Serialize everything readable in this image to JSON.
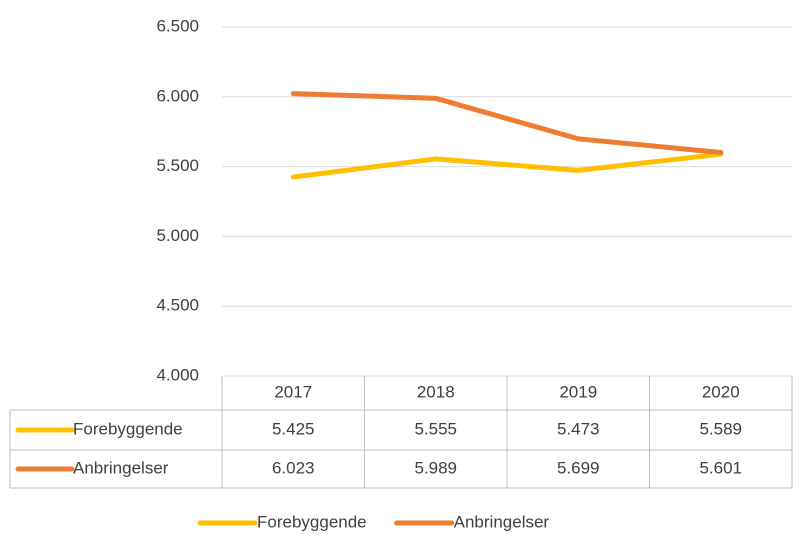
{
  "chart_data": {
    "type": "line",
    "categories": [
      "2017",
      "2018",
      "2019",
      "2020"
    ],
    "series": [
      {
        "name": "Forebyggende",
        "color": "#FFC000",
        "values": [
          5425,
          5555,
          5473,
          5589
        ],
        "value_labels": [
          "5.425",
          "5.555",
          "5.473",
          "5.589"
        ]
      },
      {
        "name": "Anbringelser",
        "color": "#ED7D31",
        "values": [
          6023,
          5989,
          5699,
          5601
        ],
        "value_labels": [
          "6.023",
          "5.989",
          "5.699",
          "5.601"
        ]
      }
    ],
    "ylim": [
      4000,
      6500
    ],
    "yticks": [
      {
        "value": 4000,
        "label": "4.000"
      },
      {
        "value": 4500,
        "label": "4.500"
      },
      {
        "value": 5000,
        "label": "5.000"
      },
      {
        "value": 5500,
        "label": "5.500"
      },
      {
        "value": 6000,
        "label": "6.000"
      },
      {
        "value": 6500,
        "label": "6.500"
      }
    ],
    "grid": true,
    "legend": "bottom",
    "data_table": true
  }
}
